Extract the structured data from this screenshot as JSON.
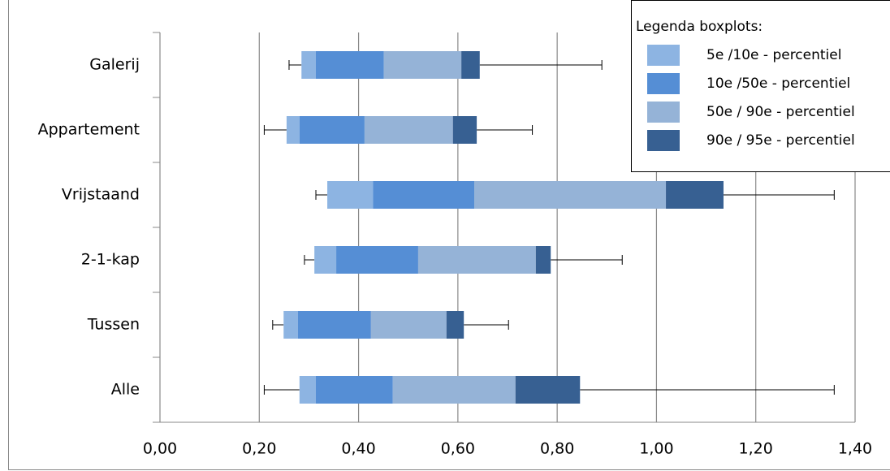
{
  "chart_data": {
    "type": "boxplot",
    "categories": [
      "Galerij",
      "Appartement",
      "Vrijstaand",
      "2-1-kap",
      "Tussen",
      "Alle"
    ],
    "boxes": [
      [
        0.26,
        0.285,
        0.314,
        0.451,
        0.607,
        0.644,
        0.89
      ],
      [
        0.21,
        0.255,
        0.281,
        0.412,
        0.59,
        0.638,
        0.75
      ],
      [
        0.314,
        0.337,
        0.429,
        0.633,
        1.019,
        1.135,
        1.358
      ],
      [
        0.291,
        0.311,
        0.355,
        0.52,
        0.757,
        0.787,
        0.931
      ],
      [
        0.227,
        0.249,
        0.278,
        0.425,
        0.577,
        0.612,
        0.702
      ],
      [
        0.21,
        0.281,
        0.314,
        0.469,
        0.716,
        0.846,
        1.358
      ]
    ],
    "legend_title": "Legenda boxplots:",
    "series": [
      {
        "name": "5e /10e - percentiel",
        "color": "#8db4e2"
      },
      {
        "name": "10e /50e - percentiel",
        "color": "#558ed5"
      },
      {
        "name": "50e / 90e - percentiel",
        "color": "#95b3d7"
      },
      {
        "name": "90e / 95e - percentiel",
        "color": "#376092"
      }
    ],
    "xlim": [
      0,
      1.4
    ],
    "xticks": [
      {
        "value": 0,
        "label": "0,00"
      },
      {
        "value": 0.2,
        "label": "0,20"
      },
      {
        "value": 0.4,
        "label": "0,40"
      },
      {
        "value": 0.6,
        "label": "0,60"
      },
      {
        "value": 0.8,
        "label": "0,80"
      },
      {
        "value": 1.0,
        "label": "1,00"
      },
      {
        "value": 1.2,
        "label": "1,20"
      },
      {
        "value": 1.4,
        "label": "1,40"
      }
    ],
    "grid": true
  }
}
